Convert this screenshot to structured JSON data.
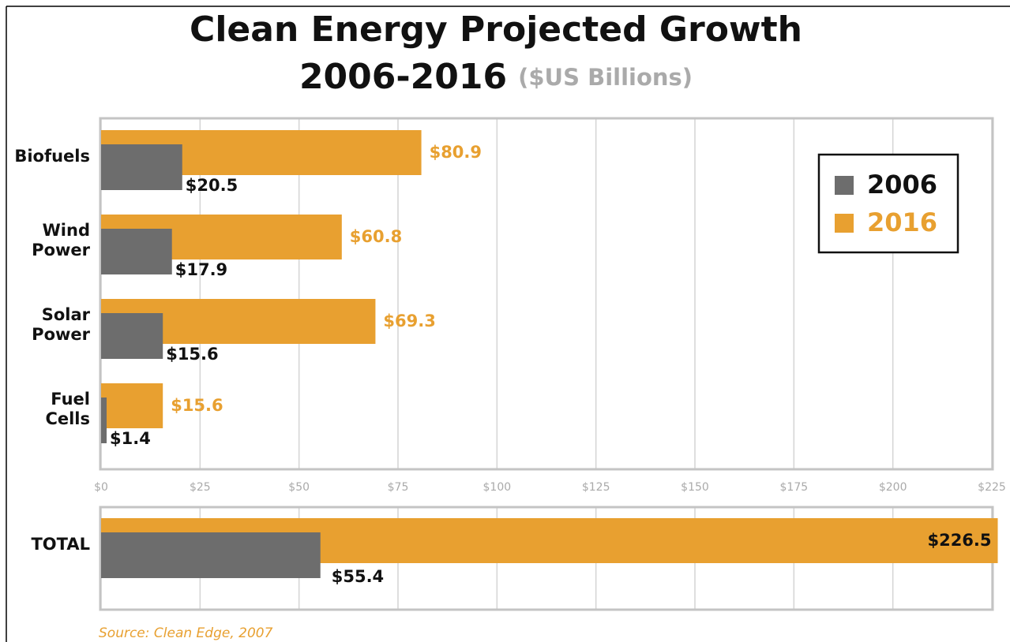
{
  "chart_data": [
    {
      "type": "bar",
      "orientation": "horizontal",
      "title": "Clean Energy Projected Growth",
      "subtitle_main": "2006-2016",
      "subtitle": "($US Billions)",
      "categories": [
        "Biofuels",
        "Wind Power",
        "Solar Power",
        "Fuel Cells"
      ],
      "series": [
        {
          "name": "2006",
          "color": "#6d6d6d",
          "values": [
            20.5,
            17.9,
            15.6,
            1.4
          ],
          "value_labels": [
            "$20.5",
            "$17.9",
            "$15.6",
            "$1.4"
          ]
        },
        {
          "name": "2016",
          "color": "#e8a030",
          "values": [
            80.9,
            60.8,
            69.3,
            15.6
          ],
          "value_labels": [
            "$80.9",
            "$60.8",
            "$69.3",
            "$15.6"
          ]
        }
      ],
      "xlim": [
        0,
        225
      ],
      "xticks": [
        {
          "value": 0,
          "label": "$0"
        },
        {
          "value": 25,
          "label": "$25"
        },
        {
          "value": 50,
          "label": "$50"
        },
        {
          "value": 75,
          "label": "$75"
        },
        {
          "value": 100,
          "label": "$100"
        },
        {
          "value": 125,
          "label": "$125"
        },
        {
          "value": 150,
          "label": "$150"
        },
        {
          "value": 175,
          "label": "$175"
        },
        {
          "value": 200,
          "label": "$200"
        },
        {
          "value": 225,
          "label": "$225"
        }
      ],
      "grid": true,
      "legend": "upper right"
    },
    {
      "type": "bar",
      "orientation": "horizontal",
      "categories": [
        "TOTAL"
      ],
      "series": [
        {
          "color": "#6d6d6d",
          "values": [
            55.4
          ],
          "value_labels": [
            "$55.4"
          ]
        },
        {
          "color": "#e8a030",
          "values": [
            226.5
          ],
          "value_labels": [
            "$226.5"
          ]
        }
      ],
      "xlim": [
        0,
        225
      ],
      "grid": true,
      "source": "Source: Clean Edge, 2007"
    }
  ]
}
